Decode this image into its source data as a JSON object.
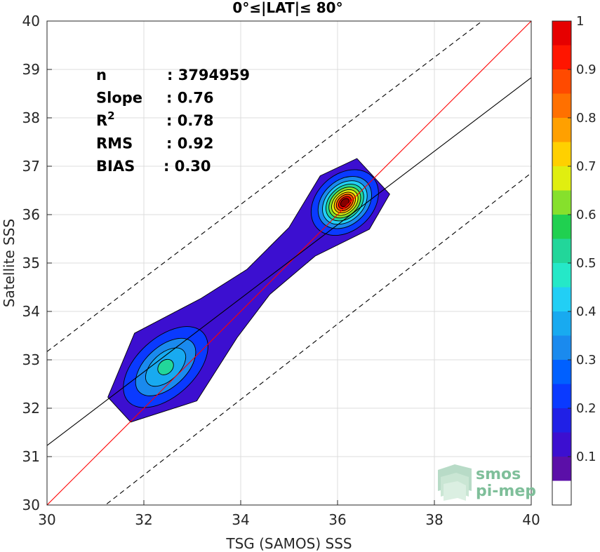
{
  "chart_data": {
    "type": "contour",
    "title": "0°≤|LAT|≤ 80°",
    "xlabel": "TSG (SAMOS) SSS",
    "ylabel": "Satellite SSS",
    "xlim": [
      30,
      40
    ],
    "ylim": [
      30,
      40
    ],
    "xticks": [
      30,
      32,
      34,
      36,
      38,
      40
    ],
    "yticks": [
      30,
      31,
      32,
      33,
      34,
      35,
      36,
      37,
      38,
      39,
      40
    ],
    "grid": true,
    "stats": [
      {
        "label": "n",
        "value": ": 3794959"
      },
      {
        "label": "Slope",
        "value": ": 0.76"
      },
      {
        "label": "R",
        "sup": "2",
        "value": ": 0.78"
      },
      {
        "label": "RMS",
        "value": ": 0.92"
      },
      {
        "label": "BIAS",
        "value": ": 0.30"
      }
    ],
    "lines": [
      {
        "name": "one-to-one",
        "color": "#ff0000",
        "style": "solid",
        "x": [
          30,
          40
        ],
        "y": [
          30,
          40
        ]
      },
      {
        "name": "regression",
        "color": "#000000",
        "style": "solid",
        "x": [
          30,
          40
        ],
        "y": [
          31.23,
          38.83
        ]
      },
      {
        "name": "upper-bound",
        "color": "#000000",
        "style": "dashed",
        "x": [
          30,
          40
        ],
        "y": [
          33.17,
          40.77
        ]
      },
      {
        "name": "lower-bound",
        "color": "#000000",
        "style": "dashed",
        "x": [
          30,
          40
        ],
        "y": [
          29.06,
          36.86
        ]
      }
    ],
    "density_levels": [
      0.05,
      0.1,
      0.15,
      0.2,
      0.25,
      0.3,
      0.35,
      0.4,
      0.45,
      0.5,
      0.55,
      0.6,
      0.65,
      0.7,
      0.75,
      0.8,
      0.85,
      0.9,
      0.95,
      1.0
    ],
    "peaks": [
      {
        "x": 36.15,
        "y": 36.25,
        "density": 1.0
      },
      {
        "x": 32.45,
        "y": 32.85,
        "density": 0.45
      }
    ],
    "colorbar": {
      "ticks": [
        0.1,
        0.2,
        0.3,
        0.4,
        0.5,
        0.6,
        0.7,
        0.8,
        0.9,
        1
      ],
      "labels": [
        "0.1",
        "0.2",
        "0.3",
        "0.4",
        "0.5",
        "0.6",
        "0.7",
        "0.8",
        "0.9",
        "1"
      ],
      "range": [
        0,
        1
      ],
      "colors": [
        "#ffffff",
        "#5b0fa8",
        "#3c0fd0",
        "#2020e6",
        "#0a3aff",
        "#0060ff",
        "#1a8aee",
        "#18aaf0",
        "#22cff5",
        "#25e8c8",
        "#22d69a",
        "#20d050",
        "#86e02c",
        "#e0ee10",
        "#ffd000",
        "#ffa000",
        "#ff7000",
        "#ff4a00",
        "#ff1500",
        "#e60000",
        "#850000"
      ]
    }
  },
  "logo": {
    "line1": "smos",
    "line2": "pi-mep"
  }
}
